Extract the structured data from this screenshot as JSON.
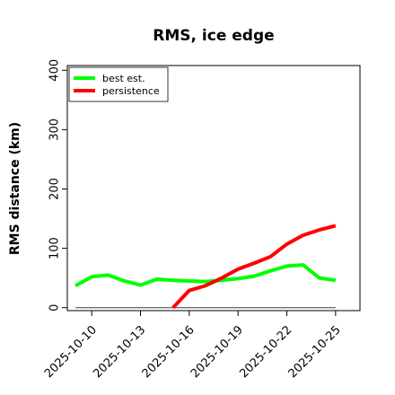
{
  "chart_data": {
    "type": "line",
    "title": "RMS, ice edge",
    "xlabel": "",
    "ylabel": "RMS distance (km)",
    "x_dates": [
      "2025-10-09",
      "2025-10-10",
      "2025-10-11",
      "2025-10-12",
      "2025-10-13",
      "2025-10-14",
      "2025-10-15",
      "2025-10-16",
      "2025-10-17",
      "2025-10-18",
      "2025-10-19",
      "2025-10-20",
      "2025-10-21",
      "2025-10-22",
      "2025-10-23",
      "2025-10-24",
      "2025-10-25"
    ],
    "x_tick_labels": [
      "2025-10-10",
      "2025-10-13",
      "2025-10-16",
      "2025-10-19",
      "2025-10-22",
      "2025-10-25"
    ],
    "x_tick_dates": [
      "2025-10-10",
      "2025-10-13",
      "2025-10-16",
      "2025-10-19",
      "2025-10-22",
      "2025-10-25"
    ],
    "xlim": [
      "2025-10-08T12:00",
      "2025-10-26T12:00"
    ],
    "ylim": [
      -5,
      408
    ],
    "y_ticks": [
      0,
      100,
      200,
      300,
      400
    ],
    "grid": false,
    "legend_position": "top-left",
    "reference_line": {
      "y": 0,
      "color": "#555555"
    },
    "series": [
      {
        "name": "best est.",
        "color": "#00ff00",
        "values": [
          37,
          52,
          55,
          45,
          38,
          48,
          46,
          45,
          44,
          46,
          49,
          53,
          62,
          70,
          72,
          50,
          46
        ]
      },
      {
        "name": "persistence",
        "color": "#ff0000",
        "values": [
          null,
          null,
          null,
          null,
          null,
          null,
          0,
          29,
          37,
          50,
          65,
          75,
          86,
          107,
          122,
          131,
          138
        ]
      }
    ]
  }
}
